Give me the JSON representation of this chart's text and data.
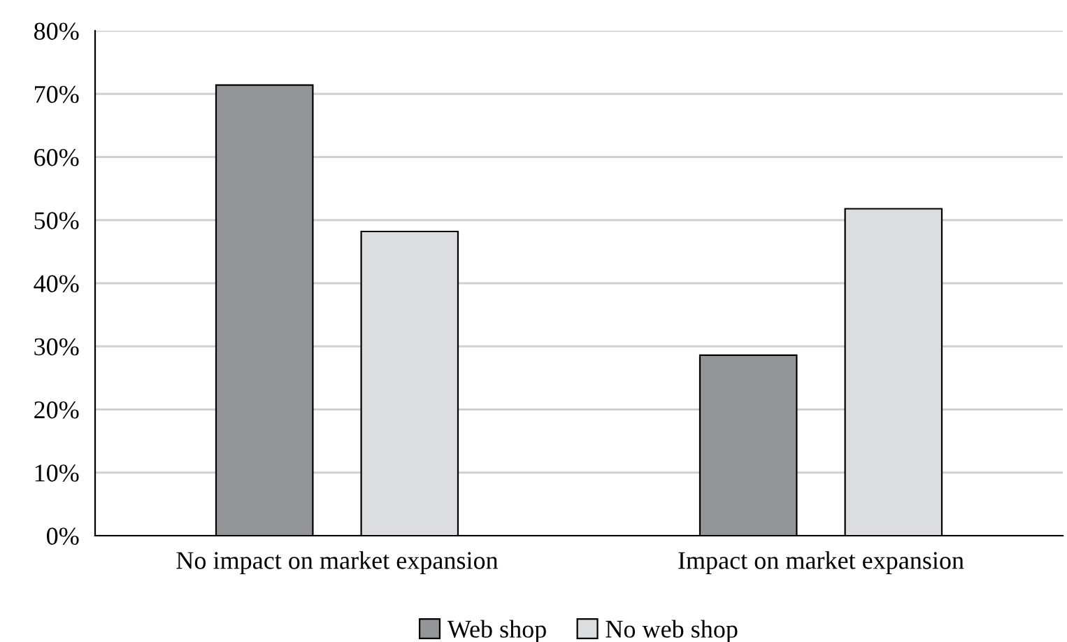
{
  "chart_data": {
    "type": "bar",
    "categories": [
      "No impact on market expansion",
      "Impact on market expansion"
    ],
    "series": [
      {
        "name": "Web shop",
        "color": "#939598",
        "values": [
          71.4,
          28.6
        ]
      },
      {
        "name": "No web shop",
        "color": "#dcdddf",
        "values": [
          48.2,
          51.8
        ]
      }
    ],
    "ylim": [
      0,
      80
    ],
    "yticks": [
      {
        "value": 0,
        "label": "0%"
      },
      {
        "value": 10,
        "label": "10%"
      },
      {
        "value": 20,
        "label": "20%"
      },
      {
        "value": 30,
        "label": "30%"
      },
      {
        "value": 40,
        "label": "40%"
      },
      {
        "value": 50,
        "label": "50%"
      },
      {
        "value": 60,
        "label": "60%"
      },
      {
        "value": 70,
        "label": "70%"
      },
      {
        "value": 80,
        "label": "80%"
      }
    ],
    "grid": "y",
    "legend": "bottom"
  }
}
